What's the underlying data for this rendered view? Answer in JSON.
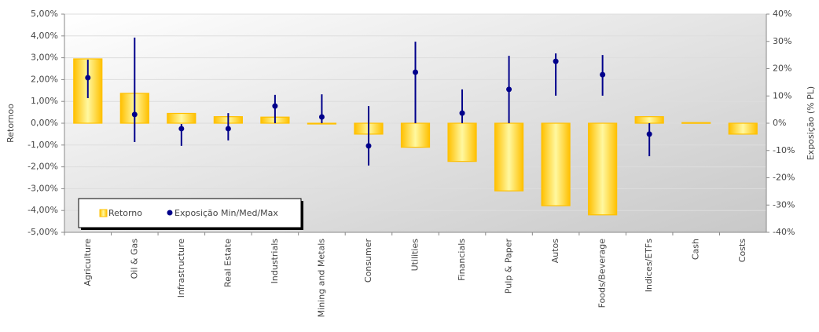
{
  "chart_data": {
    "type": "bar",
    "y_label": "Retornoo",
    "y2_label": "Exposição (% PL)",
    "categories": [
      "Agriculture",
      "Oil & Gas",
      "Infrastructure",
      "Real Estate",
      "Industrials",
      "Mining and Metals",
      "Consumer",
      "Utilities",
      "Financials",
      "Pulp & Paper",
      "Autos",
      "Foods/Beverage",
      "Indices/ETFs",
      "Cash",
      "Costs"
    ],
    "series": [
      {
        "name": "Retorno",
        "color": "#ffc000",
        "values": [
          2.95,
          1.37,
          0.45,
          0.3,
          0.28,
          -0.03,
          -0.5,
          -1.1,
          -1.75,
          -3.1,
          -3.78,
          -4.2,
          0.3,
          0.03,
          -0.5
        ]
      },
      {
        "name": "Exposição Min/Med/Max",
        "color": "#00008b",
        "axis": "y2",
        "values": [
          16.7,
          3.2,
          -2,
          -2,
          6.3,
          2.3,
          -8.3,
          18.7,
          3.7,
          12.4,
          22.7,
          17.8,
          -4,
          null,
          null
        ],
        "min": [
          9.2,
          -6.9,
          -8.3,
          -6.3,
          0,
          0,
          -15.5,
          0,
          0,
          0,
          10.1,
          10.1,
          -12.1,
          null,
          null
        ],
        "max": [
          23.3,
          31.4,
          -0.3,
          3.7,
          10.4,
          10.6,
          6.3,
          29.9,
          12.4,
          24.7,
          25.6,
          25,
          0,
          null,
          null
        ]
      }
    ],
    "ylim": [
      -5,
      5
    ],
    "yticks": [
      {
        "value": -5,
        "label": "-5,00%"
      },
      {
        "value": -4,
        "label": "-4,00%"
      },
      {
        "value": -3,
        "label": "-3,00%"
      },
      {
        "value": -2,
        "label": "-2,00%"
      },
      {
        "value": -1,
        "label": "-1,00%"
      },
      {
        "value": 0,
        "label": "0,00%"
      },
      {
        "value": 1,
        "label": "1,00%"
      },
      {
        "value": 2,
        "label": "2,00%"
      },
      {
        "value": 3,
        "label": "3,00%"
      },
      {
        "value": 4,
        "label": "4,00%"
      },
      {
        "value": 5,
        "label": "5,00%"
      }
    ],
    "y2lim": [
      -40,
      40
    ],
    "y2ticks": [
      {
        "value": -40,
        "label": "-40%"
      },
      {
        "value": -30,
        "label": "-30%"
      },
      {
        "value": -20,
        "label": "-20%"
      },
      {
        "value": -10,
        "label": "-10%"
      },
      {
        "value": 0,
        "label": "0%"
      },
      {
        "value": 10,
        "label": "10%"
      },
      {
        "value": 20,
        "label": "20%"
      },
      {
        "value": 30,
        "label": "30%"
      },
      {
        "value": 40,
        "label": "40%"
      }
    ],
    "grid": true,
    "legend": "lower left"
  }
}
